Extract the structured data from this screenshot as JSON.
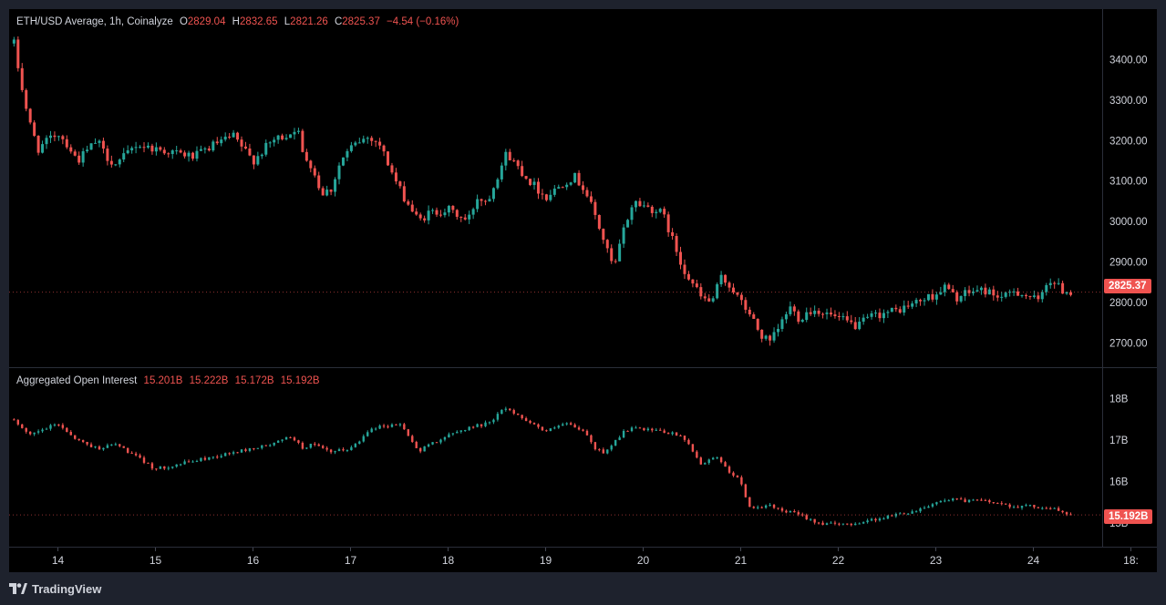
{
  "header": {
    "symbol": "ETH/USD Average, 1h, Coinalyze",
    "o_label": "O",
    "o_value": "2829.04",
    "h_label": "H",
    "h_value": "2832.65",
    "l_label": "L",
    "l_value": "2821.26",
    "c_label": "C",
    "c_value": "2825.37",
    "change": "−4.54 (−0.16%)"
  },
  "oi_header": {
    "title": "Aggregated Open Interest",
    "v1": "15.201B",
    "v2": "15.222B",
    "v3": "15.172B",
    "v4": "15.192B"
  },
  "price_tag": "2825.37",
  "oi_tag": "15.192B",
  "footer": {
    "brand": "TradingView"
  },
  "colors": {
    "up": "#26a69a",
    "down": "#ef5350",
    "bg": "#000000",
    "frame": "#1e222d"
  },
  "chart_data": [
    {
      "type": "candlestick",
      "title": "ETH/USD Average, 1h, Coinalyze",
      "ylim": [
        2640,
        3480
      ],
      "y_ticks": [
        "3400.00",
        "3300.00",
        "3200.00",
        "3100.00",
        "3000.00",
        "2900.00",
        "2800.00",
        "2700.00"
      ],
      "x_ticks": [
        "14",
        "15",
        "16",
        "17",
        "18",
        "19",
        "20",
        "21",
        "22",
        "23",
        "24",
        "18:"
      ],
      "last_value": 2825.37,
      "series": [
        {
          "kind": "close_path",
          "x": [
            13.55,
            13.6,
            13.7,
            13.8,
            14.0,
            14.1,
            14.2,
            14.4,
            14.5,
            14.6,
            14.8,
            15.0,
            15.2,
            15.4,
            15.6,
            15.8,
            16.0,
            16.2,
            16.4,
            16.45,
            16.5,
            16.6,
            16.7,
            16.8,
            16.9,
            17.0,
            17.1,
            17.2,
            17.3,
            17.5,
            17.6,
            17.7,
            17.8,
            18.0,
            18.2,
            18.3,
            18.4,
            18.6,
            18.7,
            18.8,
            19.0,
            19.1,
            19.2,
            19.3,
            19.4,
            19.5,
            19.6,
            19.7,
            19.8,
            19.9,
            20.0,
            20.2,
            20.4,
            20.6,
            20.7,
            20.8,
            20.9,
            21.0,
            21.1,
            21.2,
            21.3,
            21.4,
            21.5,
            21.6,
            21.7,
            21.8,
            22.0,
            22.2,
            22.3,
            22.4,
            22.6,
            22.8,
            23.0,
            23.1,
            23.2,
            23.3,
            23.4,
            23.5,
            23.6,
            23.7,
            23.8,
            23.9,
            24.0,
            24.05,
            24.1,
            24.15,
            24.2,
            24.25,
            24.3,
            24.4
          ],
          "values": [
            3440,
            3370,
            3250,
            3180,
            3220,
            3190,
            3150,
            3200,
            3160,
            3140,
            3190,
            3180,
            3170,
            3160,
            3190,
            3210,
            3150,
            3200,
            3220,
            3240,
            3170,
            3140,
            3070,
            3080,
            3150,
            3180,
            3200,
            3210,
            3190,
            3080,
            3040,
            3000,
            3020,
            3030,
            3000,
            3060,
            3050,
            3170,
            3140,
            3110,
            3060,
            3080,
            3100,
            3110,
            3080,
            3020,
            2950,
            2880,
            2980,
            3050,
            3040,
            3020,
            2890,
            2810,
            2800,
            2860,
            2840,
            2800,
            2770,
            2720,
            2700,
            2740,
            2790,
            2760,
            2780,
            2780,
            2760,
            2740,
            2760,
            2770,
            2780,
            2800,
            2820,
            2840,
            2810,
            2820,
            2830,
            2830,
            2820,
            2810,
            2830,
            2820,
            2810,
            2800,
            2830,
            2860,
            2850,
            2840,
            2830,
            2825.37
          ]
        }
      ]
    },
    {
      "type": "candlestick",
      "title": "Aggregated Open Interest",
      "ylim": [
        14.6,
        18.3
      ],
      "y_ticks": [
        "18B",
        "17B",
        "16B",
        "15B"
      ],
      "last_value": 15.192,
      "series": [
        {
          "kind": "close_path",
          "x": [
            13.55,
            13.7,
            13.9,
            14.0,
            14.2,
            14.4,
            14.6,
            14.8,
            15.0,
            15.2,
            15.4,
            15.6,
            15.8,
            16.0,
            16.2,
            16.4,
            16.5,
            16.6,
            16.8,
            17.0,
            17.1,
            17.2,
            17.4,
            17.5,
            17.6,
            17.7,
            17.8,
            18.0,
            18.2,
            18.4,
            18.6,
            18.7,
            18.8,
            19.0,
            19.1,
            19.2,
            19.4,
            19.5,
            19.6,
            19.8,
            19.9,
            20.0,
            20.2,
            20.4,
            20.6,
            20.7,
            20.8,
            20.9,
            21.0,
            21.1,
            21.2,
            21.3,
            21.4,
            21.6,
            21.8,
            22.0,
            22.2,
            22.4,
            22.6,
            22.8,
            23.0,
            23.2,
            23.3,
            23.4,
            23.6,
            23.8,
            24.0,
            24.2,
            24.3,
            24.4
          ],
          "values": [
            17.5,
            17.1,
            17.3,
            17.4,
            17.0,
            16.8,
            16.9,
            16.6,
            16.3,
            16.4,
            16.5,
            16.6,
            16.7,
            16.8,
            16.9,
            17.1,
            16.8,
            16.9,
            16.7,
            16.8,
            17.0,
            17.3,
            17.35,
            17.4,
            17.1,
            16.7,
            16.9,
            17.1,
            17.3,
            17.4,
            17.8,
            17.6,
            17.5,
            17.2,
            17.3,
            17.4,
            17.2,
            16.8,
            16.7,
            17.2,
            17.3,
            17.25,
            17.2,
            17.1,
            16.4,
            16.6,
            16.5,
            16.2,
            16.0,
            15.3,
            15.4,
            15.4,
            15.3,
            15.2,
            15.0,
            14.95,
            15.0,
            15.1,
            15.2,
            15.3,
            15.5,
            15.6,
            15.5,
            15.55,
            15.5,
            15.4,
            15.4,
            15.35,
            15.25,
            15.192
          ]
        }
      ]
    }
  ]
}
